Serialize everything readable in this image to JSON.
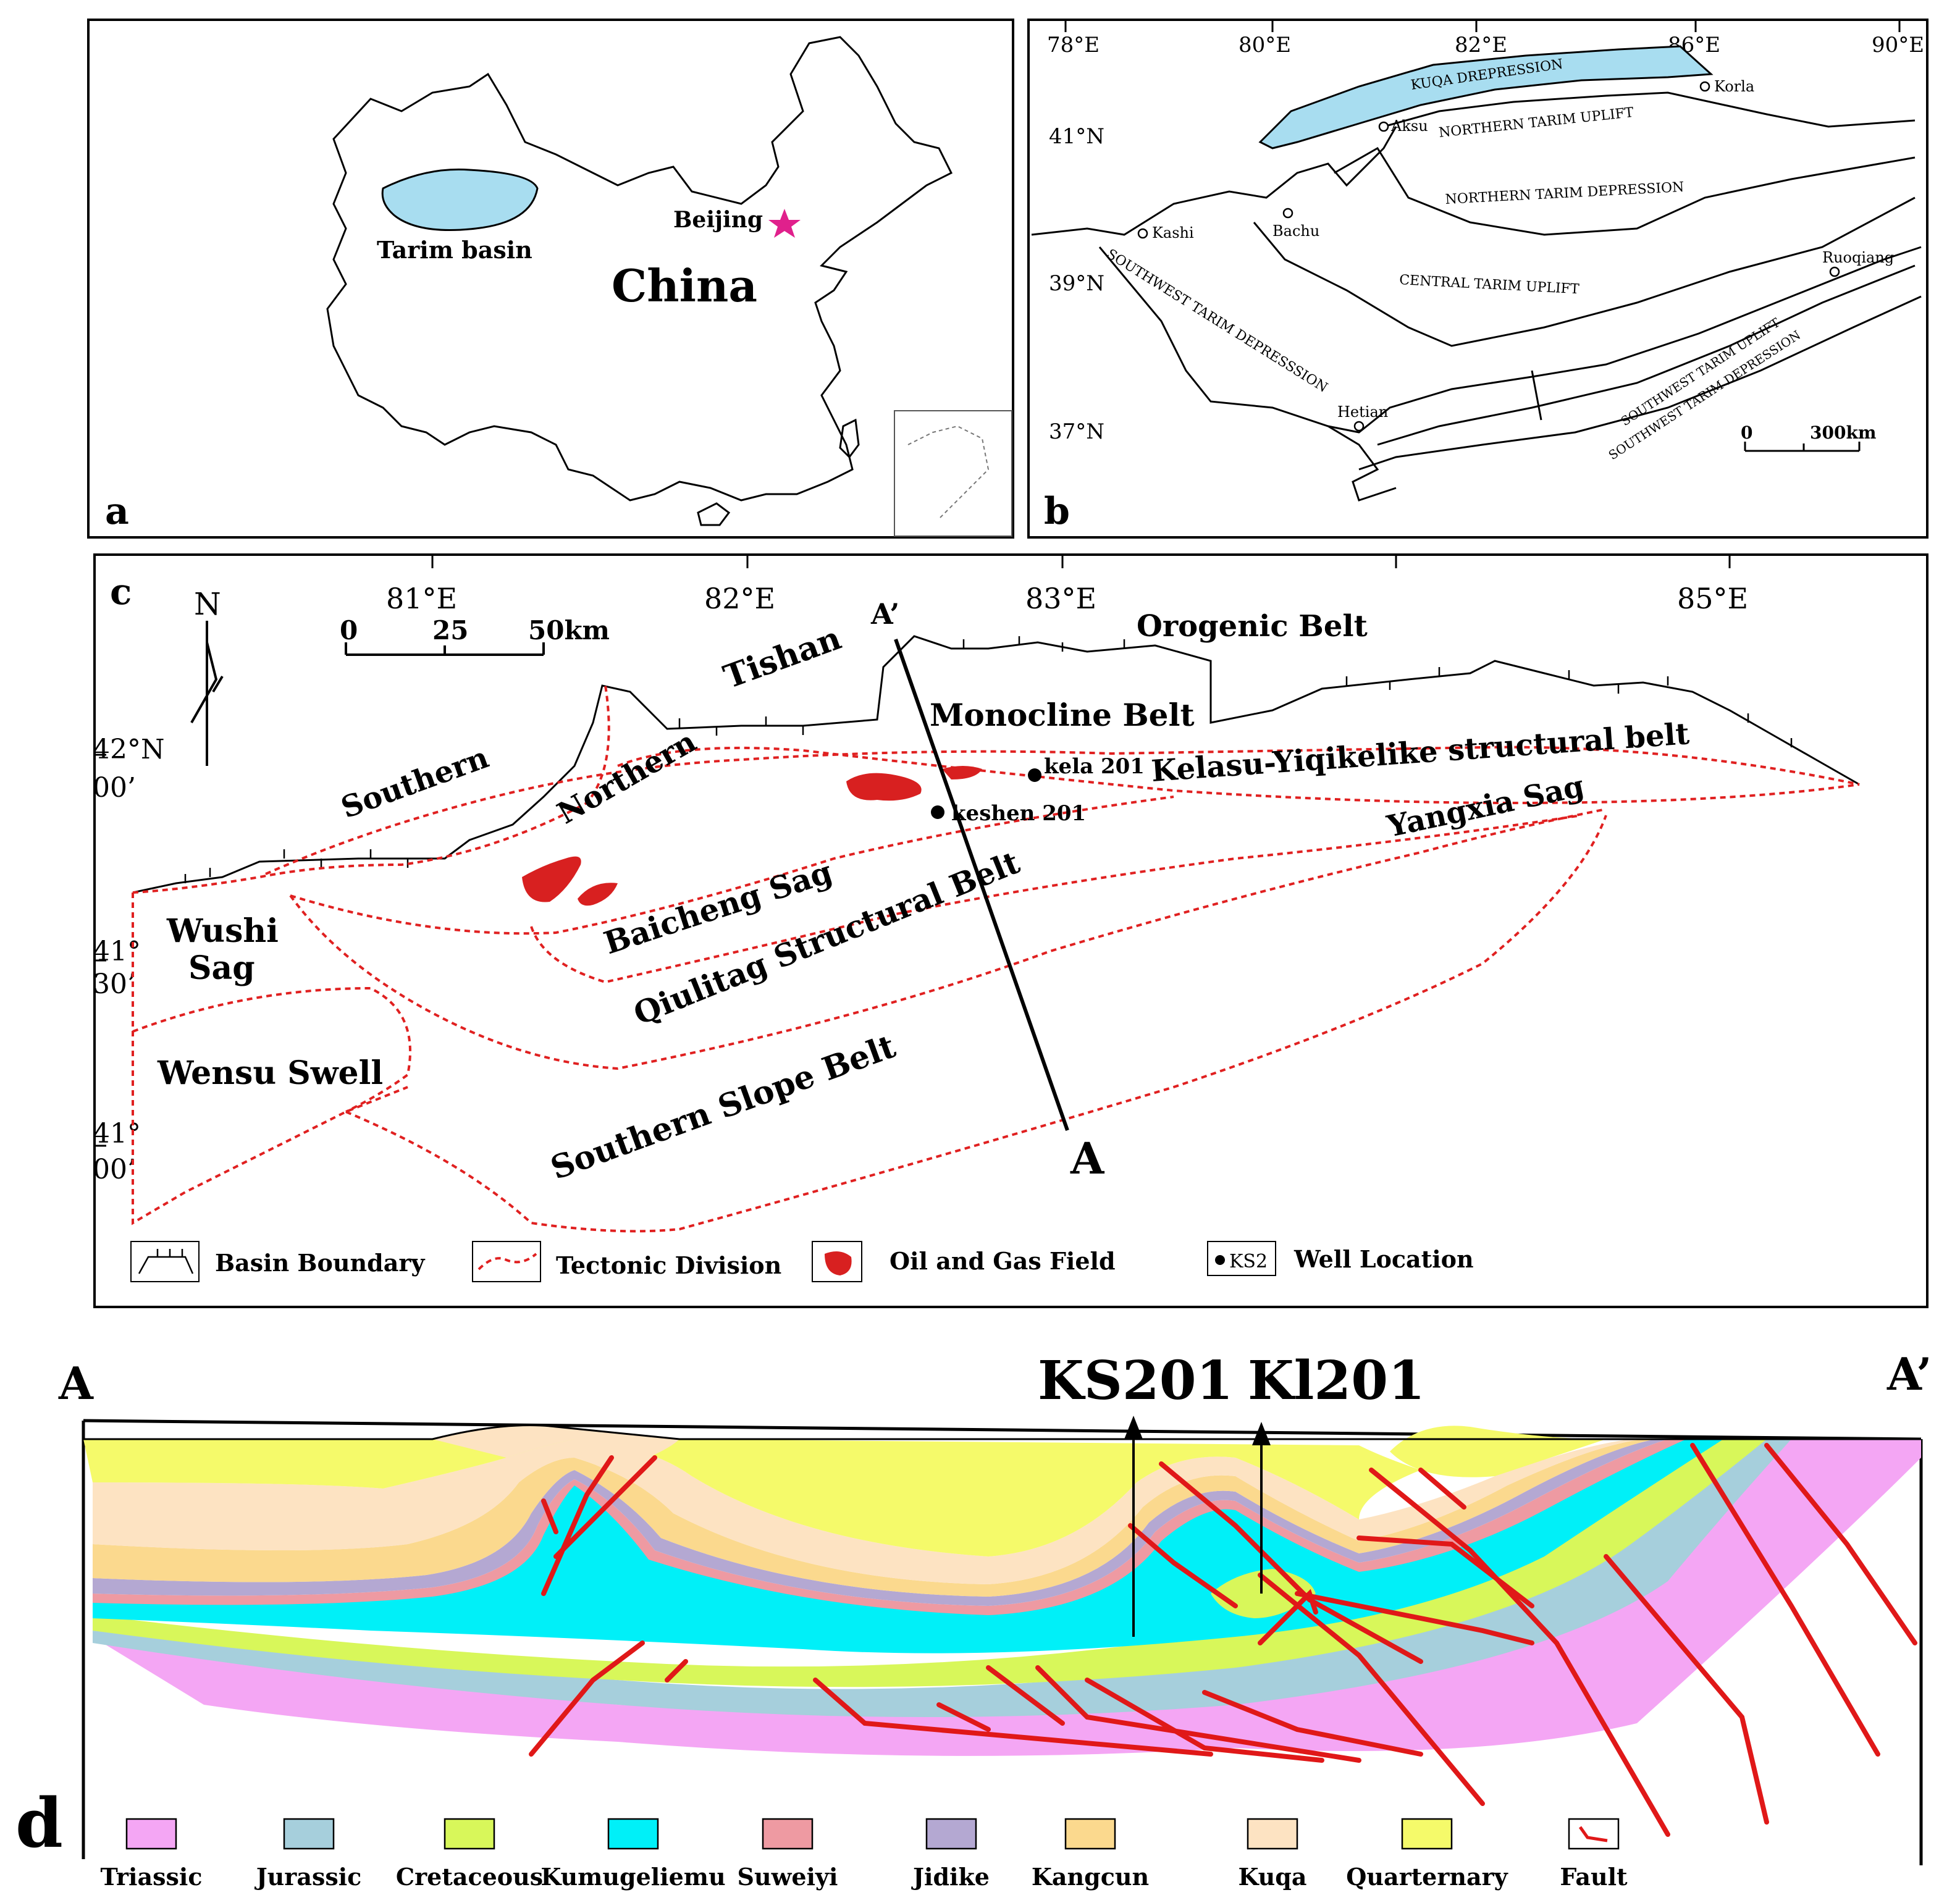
{
  "panels": {
    "a": {
      "letter": "a",
      "tarim_label": "Tarim basin",
      "beijing_label": "Beijing",
      "country_label": "China",
      "colors": {
        "tarim": "#a8ddf0",
        "star": "#e0208c"
      }
    },
    "b": {
      "letter": "b",
      "lon_ticks": [
        "78°E",
        "80°E",
        "82°E",
        "86°E",
        "90°E"
      ],
      "lat_ticks": [
        "41°N",
        "39°N",
        "37°N"
      ],
      "places": [
        "Korla",
        "Aksu",
        "Kashi",
        "Bachu",
        "Ruoqiang",
        "Hetian"
      ],
      "units": [
        "KUQA DREPRESSION",
        "NORTHERN TARIM UPLIFT",
        "NORTHERN TARIM DEPRESSION",
        "CENTRAL TARIM UPLIFT",
        "SOUTHWEST TARIM DEPRESSSION",
        "SOUTHWEST TARIM UPLIFT",
        "SOUTHWEST TARIM DEPRESSION"
      ],
      "scale_zero": "0",
      "scale_label": "300km",
      "colors": {
        "kuqa": "#a8ddf0"
      }
    },
    "c": {
      "letter": "c",
      "north": "N",
      "lon_ticks": [
        "81°E",
        "82°E",
        "83°E",
        "85°E"
      ],
      "lat_ticks": [
        {
          "deg": "42°N",
          "min": "00’"
        },
        {
          "deg": "41°",
          "min": "30’"
        },
        {
          "deg": "41°",
          "min": "00’"
        }
      ],
      "scale": {
        "zero": "0",
        "mid": "25",
        "end": "50km"
      },
      "units": {
        "tishan": "Tishan",
        "orogenic": "Orogenic Belt",
        "monocline": "Monocline  Belt",
        "southern": "Southern",
        "northern": "Northern",
        "kelasu": "Kelasu-Yiqikelike structural belt",
        "yangxia": "Yangxia Sag",
        "baicheng": "Baicheng Sag",
        "qiulitag": "Qiulitag Structural Belt",
        "wushi1": "Wushi",
        "wushi2": "Sag",
        "wensu": "Wensu Swell",
        "slope": "Southern Slope Belt"
      },
      "wells": [
        "kela 201",
        "keshen 201"
      ],
      "section_ends": {
        "a": "A",
        "a_prime": "A’"
      },
      "legend": {
        "basin_boundary": "Basin Boundary",
        "tectonic_division": "Tectonic Division",
        "field": "Oil and Gas  Field",
        "well_symbol": "KS2",
        "well_location": "Well Location"
      },
      "colors": {
        "field": "#d82020",
        "division": "#e02020"
      }
    },
    "d": {
      "letter": "d",
      "end_a": "A",
      "end_a_prime": "A’",
      "wells": [
        "KS201",
        "Kl201"
      ],
      "legend": [
        {
          "label": "Triassic",
          "color": "#f4a6f4"
        },
        {
          "label": "Jurassic",
          "color": "#a6cfdc"
        },
        {
          "label": "Cretaceous",
          "color": "#d8f75a"
        },
        {
          "label": "Kumugeliemu",
          "color": "#00f0f8"
        },
        {
          "label": "Suweiyi",
          "color": "#ee9aa2"
        },
        {
          "label": "Jidike",
          "color": "#b4a8d2"
        },
        {
          "label": "Kangcun",
          "color": "#fbd98e"
        },
        {
          "label": "Kuqa",
          "color": "#fde3c2"
        },
        {
          "label": "Quarternary",
          "color": "#f5fa6a"
        },
        {
          "label": "Fault",
          "color": "#e01818"
        }
      ]
    }
  }
}
